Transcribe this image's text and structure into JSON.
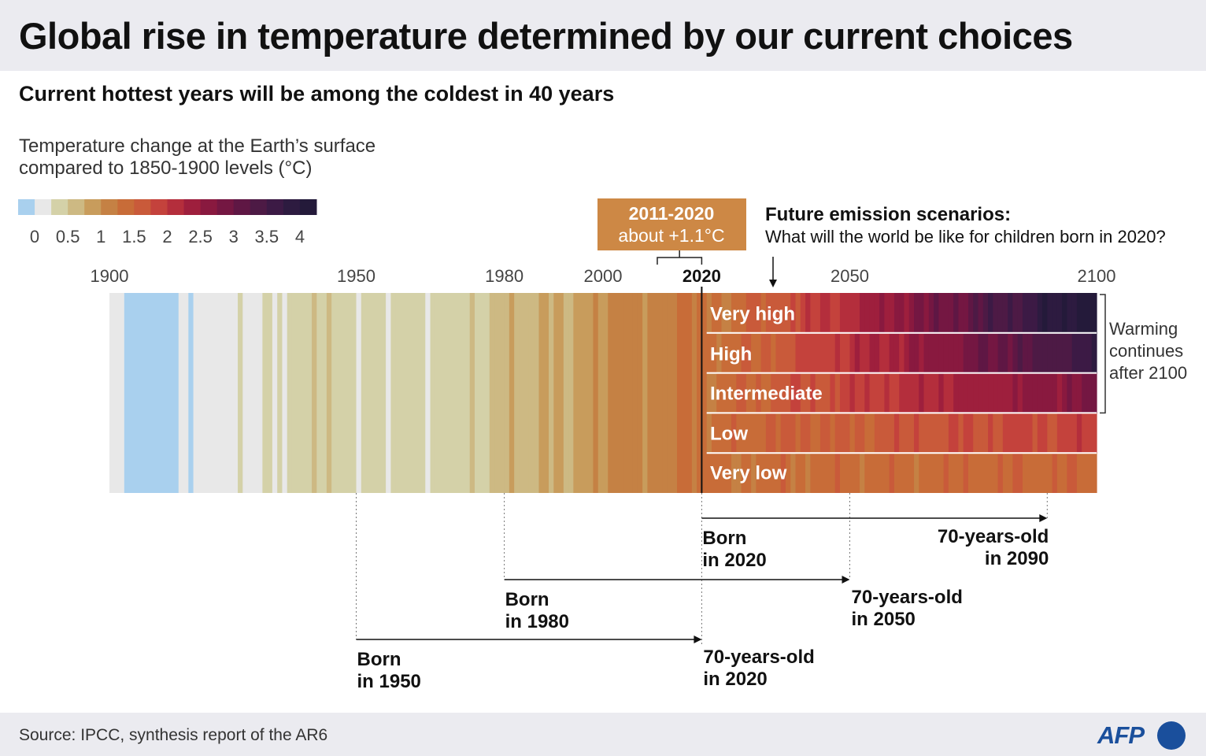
{
  "header": {
    "title": "Global rise in temperature determined by our current choices",
    "subtitle": "Current hottest years will be among the coldest in 40 years"
  },
  "footer": {
    "source": "Source: IPCC, synthesis report of the AR6",
    "logo_text": "AFP"
  },
  "chart_data": {
    "type": "heatmap",
    "title": "Global rise in temperature determined by our current choices",
    "subtitle": "Current hottest years will be among the coldest in 40 years",
    "scale_title": "Temperature change at the Earth’s surface compared to 1850-1900 levels (°C)",
    "color_scale": {
      "ticks": [
        "0",
        "0.5",
        "1",
        "1.5",
        "2",
        "2.5",
        "3",
        "3.5",
        "4"
      ],
      "min": -0.25,
      "max": 4.25,
      "bin_width": 0.25,
      "colors": [
        "#a9d0ee",
        "#e8e8e8",
        "#d4d1a8",
        "#cdb983",
        "#c89c5c",
        "#c58144",
        "#c86c38",
        "#c95a3a",
        "#c4423c",
        "#b42e3c",
        "#9e1f3d",
        "#89193f",
        "#741742",
        "#5f1744",
        "#4d1a45",
        "#3c1a45",
        "#2d1b40",
        "#241a3a"
      ]
    },
    "x_axis": {
      "ticks": [
        "1900",
        "1950",
        "1980",
        "2000",
        "2020",
        "2050",
        "2100"
      ],
      "range": [
        1900,
        2100
      ]
    },
    "callout": {
      "period": "2011-2020",
      "value": "about +1.1°C",
      "color": "#cd8845"
    },
    "scenarios_heading": "Future emission scenarios:",
    "scenarios_question": "What will the world be like for children born in 2020?",
    "observed": {
      "start_year": 1900,
      "values": [
        0.0,
        0.0,
        0.0,
        -0.1,
        -0.2,
        -0.2,
        -0.2,
        -0.3,
        -0.3,
        -0.2,
        -0.2,
        -0.2,
        -0.2,
        -0.1,
        0.05,
        0.05,
        -0.1,
        0.0,
        0.0,
        0.0,
        0.05,
        0.1,
        0.0,
        0.0,
        0.0,
        0.1,
        0.25,
        0.1,
        0.1,
        0.0,
        0.2,
        0.3,
        0.25,
        0.1,
        0.25,
        0.2,
        0.25,
        0.35,
        0.4,
        0.4,
        0.45,
        0.5,
        0.4,
        0.45,
        0.55,
        0.45,
        0.3,
        0.3,
        0.3,
        0.25,
        0.2,
        0.35,
        0.4,
        0.45,
        0.25,
        0.25,
        0.2,
        0.4,
        0.45,
        0.4,
        0.35,
        0.45,
        0.4,
        0.45,
        0.2,
        0.3,
        0.35,
        0.35,
        0.3,
        0.45,
        0.4,
        0.3,
        0.4,
        0.55,
        0.3,
        0.35,
        0.3,
        0.6,
        0.5,
        0.6,
        0.7,
        0.75,
        0.55,
        0.7,
        0.6,
        0.6,
        0.7,
        0.8,
        0.85,
        0.7,
        0.9,
        0.85,
        0.65,
        0.7,
        0.8,
        0.9,
        0.8,
        0.95,
        1.1,
        0.85,
        0.9,
        1.0,
        1.05,
        1.05,
        1.0,
        1.1,
        1.05,
        1.0,
        0.95,
        1.05,
        1.15,
        1.0,
        1.05,
        1.1,
        1.1,
        1.3,
        1.35,
        1.25,
        1.2,
        1.3,
        1.3
      ]
    },
    "scenarios": {
      "start_year": 2021,
      "series": [
        {
          "name": "Very high",
          "start": 1.3,
          "end": 4.3,
          "shape": 1.25
        },
        {
          "name": "High",
          "start": 1.3,
          "end": 3.7,
          "shape": 1.15
        },
        {
          "name": "Intermediate",
          "start": 1.3,
          "end": 2.8,
          "shape": 1.0
        },
        {
          "name": "Low",
          "start": 1.3,
          "end": 1.9,
          "shape": 0.8
        },
        {
          "name": "Very low",
          "start": 1.3,
          "end": 1.45,
          "shape": 0.7
        }
      ]
    },
    "warming_note": "Warming continues after 2100",
    "lifespans": [
      {
        "born_label": "Born in 1950",
        "old_label": "70-years-old in 2020",
        "birth": 1950,
        "age70": 2020
      },
      {
        "born_label": "Born in 1980",
        "old_label": "70-years-old in 2050",
        "birth": 1980,
        "age70": 2050
      },
      {
        "born_label": "Born in 2020",
        "old_label": "70-years-old in 2090",
        "birth": 2020,
        "age70": 2090
      }
    ]
  }
}
